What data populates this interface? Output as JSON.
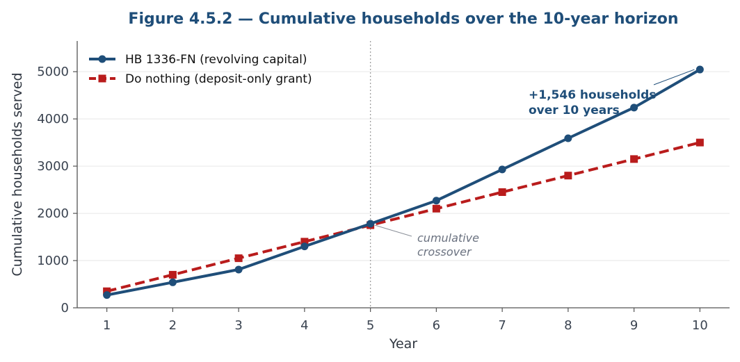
{
  "chart_data": {
    "type": "line",
    "title": "Figure 4.5.2 — Cumulative households over the 10-year horizon",
    "xlabel": "Year",
    "ylabel": "Cumulative households served",
    "x": [
      1,
      2,
      3,
      4,
      5,
      6,
      7,
      8,
      9,
      10
    ],
    "xlim": [
      0.55,
      10.45
    ],
    "ylim": [
      0,
      5650
    ],
    "yticks": [
      0,
      1000,
      2000,
      3000,
      4000,
      5000
    ],
    "grid": "horizontal",
    "legend_position": "top-left",
    "series": [
      {
        "name": "HB 1336-FN (revolving capital)",
        "values": [
          270,
          540,
          810,
          1300,
          1780,
          2270,
          2930,
          3590,
          4240,
          5046
        ],
        "color": "#1f4e79",
        "marker": "circle",
        "line": "solid"
      },
      {
        "name": "Do nothing (deposit-only grant)",
        "values": [
          350,
          700,
          1050,
          1400,
          1750,
          2100,
          2450,
          2800,
          3150,
          3500
        ],
        "color": "#b91c1c",
        "marker": "square",
        "line": "dashed"
      }
    ],
    "annotations": [
      {
        "lines": [
          "+1,546 households",
          "over 10 years"
        ],
        "x": 10,
        "y": 5046,
        "style": "bold",
        "color": "#1f4e79"
      },
      {
        "lines": [
          "cumulative",
          "crossover"
        ],
        "x": 5,
        "y": 1780,
        "style": "italic",
        "color": "#6b7280"
      }
    ],
    "vline": {
      "x": 5
    },
    "colors": {
      "title": "#1f4e79",
      "grid": "#e6e6e6",
      "axis": "#555555",
      "vline": "#a0a0a0"
    }
  }
}
